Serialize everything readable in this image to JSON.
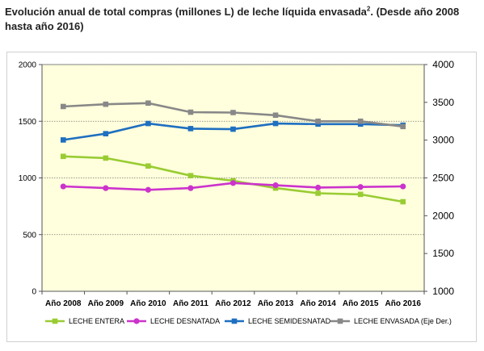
{
  "title": {
    "main": "Evolución anual de total compras (millones L) de leche líquida envasada",
    "superscript": "2",
    "rest": ". (Desde año 2008 hasta año 2016)"
  },
  "chart_data": {
    "type": "line",
    "title": "Evolución anual de total compras (millones L) de leche líquida envasada2. (Desde año 2008 hasta año 2016)",
    "categories": [
      "Año 2008",
      "Año 2009",
      "Año 2010",
      "Año 2011",
      "Año 2012",
      "Año 2013",
      "Año 2014",
      "Año 2015",
      "Año 2016"
    ],
    "y_left": {
      "ylim": [
        0,
        2000
      ],
      "ticks": [
        0,
        500,
        1000,
        1500,
        2000
      ]
    },
    "y_right": {
      "ylim": [
        1000,
        4000
      ],
      "ticks": [
        1000,
        1500,
        2000,
        2500,
        3000,
        3500,
        4000
      ]
    },
    "grid": "horizontal",
    "legend_position": "bottom",
    "plot_background": "#ffffdd",
    "series": [
      {
        "name": "LECHE ENTERA",
        "axis": "left",
        "color": "#99cc33",
        "marker": "square",
        "values": [
          1190,
          1175,
          1105,
          1020,
          975,
          910,
          865,
          855,
          790
        ]
      },
      {
        "name": "LECHE DESNATADA",
        "axis": "left",
        "color": "#cc33cc",
        "marker": "circle",
        "values": [
          925,
          910,
          895,
          910,
          955,
          935,
          915,
          920,
          925
        ]
      },
      {
        "name": "LECHE SEMIDESNATAD",
        "axis": "left",
        "color": "#1e6fc0",
        "marker": "square",
        "values": [
          1335,
          1390,
          1480,
          1435,
          1430,
          1480,
          1475,
          1475,
          1465
        ]
      },
      {
        "name": "LECHE ENVASADA (Eje Der.)",
        "axis": "right",
        "color": "#888888",
        "marker": "square",
        "values": [
          3445,
          3475,
          3490,
          3370,
          3365,
          3330,
          3250,
          3250,
          3180
        ]
      }
    ]
  }
}
